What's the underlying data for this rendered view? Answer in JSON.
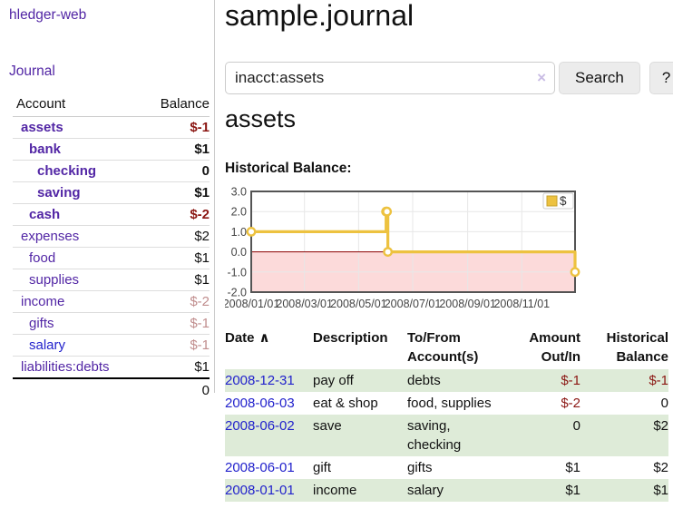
{
  "app": {
    "brand": "hledger-web",
    "nav_journal": "Journal"
  },
  "colors": {
    "purple": "#5226a5",
    "blue": "#2222cc",
    "negative": "#8b1713",
    "negative_faded": "#c08d8d",
    "row_green": "#deebd8",
    "accent_gold": "#edc240"
  },
  "sidebar": {
    "accounts_header": {
      "account": "Account",
      "balance": "Balance"
    },
    "accounts": [
      {
        "name": "assets",
        "level": 1,
        "bold": true,
        "balance": "$-1",
        "neg": "strong"
      },
      {
        "name": "bank",
        "level": 2,
        "bold": true,
        "balance": "$1"
      },
      {
        "name": "checking",
        "level": 3,
        "bold": true,
        "balance": "0"
      },
      {
        "name": "saving",
        "level": 3,
        "bold": true,
        "balance": "$1"
      },
      {
        "name": "cash",
        "level": 2,
        "bold": true,
        "balance": "$-2",
        "neg": "strong"
      },
      {
        "name": "expenses",
        "level": 1,
        "bold": false,
        "balance": "$2"
      },
      {
        "name": "food",
        "level": 2,
        "bold": false,
        "balance": "$1"
      },
      {
        "name": "supplies",
        "level": 2,
        "bold": false,
        "balance": "$1"
      },
      {
        "name": "income",
        "level": 1,
        "bold": false,
        "balance": "$-2",
        "neg": "faded"
      },
      {
        "name": "gifts",
        "level": 2,
        "bold": false,
        "balance": "$-1",
        "neg": "faded"
      },
      {
        "name": "salary",
        "level": 2,
        "bold": false,
        "balance": "$-1",
        "neg": "faded",
        "link_color": "blue"
      },
      {
        "name": "liabilities:debts",
        "level": 1,
        "bold": false,
        "balance": "$1"
      }
    ],
    "total": "0"
  },
  "header": {
    "title": "sample.journal"
  },
  "search": {
    "value": "inacct:assets",
    "clear_icon": "×",
    "search_label": "Search",
    "help_label": "?"
  },
  "main": {
    "account_heading": "assets",
    "chart_label": "Historical Balance:"
  },
  "chart_data": {
    "type": "line",
    "step": true,
    "title": "Historical Balance",
    "x_range": [
      "2008-01-01",
      "2008-12-31"
    ],
    "y_range": [
      -2,
      3
    ],
    "series": [
      {
        "name": "$",
        "color": "#edc240",
        "points": [
          [
            "2008-01-01",
            1
          ],
          [
            "2008-06-01",
            2
          ],
          [
            "2008-06-02",
            2
          ],
          [
            "2008-06-03",
            0
          ],
          [
            "2008-12-31",
            -1
          ]
        ]
      }
    ],
    "y_ticks": [
      {
        "value": 3,
        "label": "3.0"
      },
      {
        "value": 2,
        "label": "2.0"
      },
      {
        "value": 1,
        "label": "1.0"
      },
      {
        "value": 0,
        "label": "0.0"
      },
      {
        "value": -1,
        "label": "-1.0"
      },
      {
        "value": -2,
        "label": "-2.0"
      }
    ],
    "x_ticks": [
      {
        "date": "2008-01-01",
        "label": "2008/01/01"
      },
      {
        "date": "2008-03-01",
        "label": "2008/03/01"
      },
      {
        "date": "2008-05-01",
        "label": "2008/05/01"
      },
      {
        "date": "2008-07-01",
        "label": "2008/07/01"
      },
      {
        "date": "2008-09-01",
        "label": "2008/09/01"
      },
      {
        "date": "2008-11-01",
        "label": "2008/11/01"
      }
    ],
    "grid": true,
    "legend_position": "top-right",
    "negative_region_color": "#fcdada",
    "zero_line_color": "#8b0000",
    "plot_border_color": "#545454",
    "grid_color": "#e7e7e7",
    "marker": {
      "fill": "#ffffff",
      "stroke": "#edc240"
    }
  },
  "register": {
    "columns": [
      {
        "key": "date",
        "lines": [
          "Date"
        ],
        "sort": "∧",
        "align": "left"
      },
      {
        "key": "description",
        "lines": [
          "Description"
        ],
        "align": "left"
      },
      {
        "key": "accounts",
        "lines": [
          "To/From",
          "Account(s)"
        ],
        "align": "left"
      },
      {
        "key": "amount",
        "lines": [
          "Amount",
          "Out/In"
        ],
        "align": "right"
      },
      {
        "key": "balance",
        "lines": [
          "Historical",
          "Balance"
        ],
        "align": "right"
      }
    ],
    "rows": [
      {
        "date": "2008-12-31",
        "description": "pay off",
        "accounts": [
          "debts"
        ],
        "amount": "$-1",
        "amount_neg": true,
        "balance": "$-1",
        "balance_neg": true
      },
      {
        "date": "2008-06-03",
        "description": "eat & shop",
        "accounts": [
          "food, supplies"
        ],
        "amount": "$-2",
        "amount_neg": true,
        "balance": "0",
        "balance_neg": false
      },
      {
        "date": "2008-06-02",
        "description": "save",
        "accounts": [
          "saving,",
          "checking"
        ],
        "amount": "0",
        "amount_neg": false,
        "balance": "$2",
        "balance_neg": false
      },
      {
        "date": "2008-06-01",
        "description": "gift",
        "accounts": [
          "gifts"
        ],
        "amount": "$1",
        "amount_neg": false,
        "balance": "$2",
        "balance_neg": false
      },
      {
        "date": "2008-01-01",
        "description": "income",
        "accounts": [
          "salary"
        ],
        "amount": "$1",
        "amount_neg": false,
        "balance": "$1",
        "balance_neg": false
      }
    ]
  }
}
